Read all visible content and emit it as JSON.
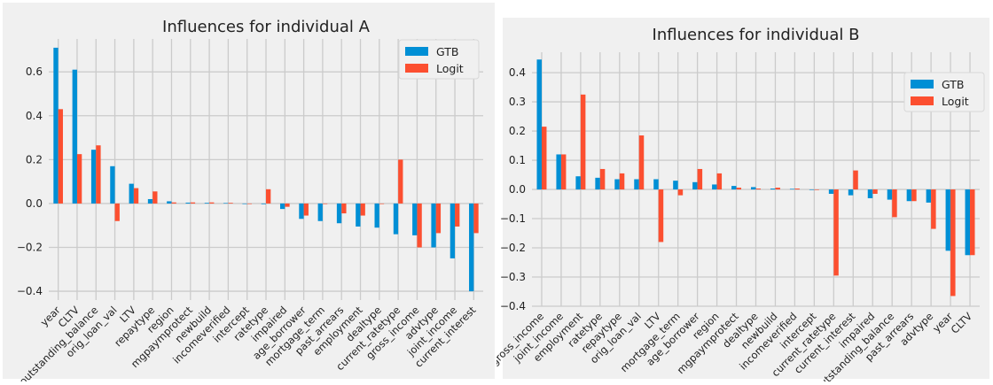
{
  "colors": {
    "gtb": "#008fd5",
    "logit": "#fc4f30",
    "background": "#f0f0f0",
    "grid": "#cbcbcb",
    "text": "#222222"
  },
  "chart_data": [
    {
      "type": "bar",
      "title": "Influences for individual A",
      "xlabel": "",
      "ylabel": "",
      "ylim": [
        -0.44,
        0.75
      ],
      "yticks": [
        "−0.4",
        "−0.2",
        "0.0",
        "0.2",
        "0.4",
        "0.6"
      ],
      "ytick_values": [
        -0.4,
        -0.2,
        0.0,
        0.2,
        0.4,
        0.6
      ],
      "grid": true,
      "legend_position": "top-right",
      "categories": [
        "year",
        "CLTV",
        "outstanding_balance",
        "orig_loan_val",
        "LTV",
        "repaytype",
        "region",
        "mgpaymprotect",
        "newbuild",
        "incomeverified",
        "intercept",
        "ratetype",
        "impaired",
        "age_borrower",
        "mortgage_term",
        "past_arrears",
        "employment",
        "dealtype",
        "current_ratetype",
        "gross_income",
        "advtype",
        "joint_income",
        "current_interest"
      ],
      "series": [
        {
          "name": "GTB",
          "values": [
            0.71,
            0.61,
            0.245,
            0.17,
            0.09,
            0.02,
            0.01,
            0.004,
            0.003,
            0.002,
            0.0,
            -0.003,
            -0.025,
            -0.07,
            -0.08,
            -0.09,
            -0.105,
            -0.11,
            -0.14,
            -0.145,
            -0.2,
            -0.25,
            -0.4
          ]
        },
        {
          "name": "Logit",
          "values": [
            0.43,
            0.225,
            0.265,
            -0.08,
            0.07,
            0.055,
            0.005,
            0.005,
            0.005,
            0.003,
            0.0,
            0.065,
            -0.015,
            -0.055,
            0.0,
            -0.045,
            -0.055,
            0.0,
            0.2,
            -0.2,
            -0.135,
            -0.105,
            -0.135
          ]
        }
      ]
    },
    {
      "type": "bar",
      "title": "Influences for individual B",
      "xlabel": "",
      "ylabel": "",
      "ylim": [
        -0.4,
        0.47
      ],
      "yticks": [
        "−0.4",
        "−0.3",
        "−0.2",
        "−0.1",
        "0.0",
        "0.1",
        "0.2",
        "0.3",
        "0.4"
      ],
      "ytick_values": [
        -0.4,
        -0.3,
        -0.2,
        -0.1,
        0.0,
        0.1,
        0.2,
        0.3,
        0.4
      ],
      "grid": true,
      "legend_position": "top-right",
      "categories": [
        "gross_income",
        "joint_income",
        "employment",
        "ratetype",
        "repaytype",
        "orig_loan_val",
        "LTV",
        "mortgage_term",
        "age_borrower",
        "region",
        "mgpaymprotect",
        "dealtype",
        "newbuild",
        "incomeverified",
        "intercept",
        "current_ratetype",
        "current_interest",
        "impaired",
        "outstanding_balance",
        "past_arrears",
        "advtype",
        "year",
        "CLTV"
      ],
      "series": [
        {
          "name": "GTB",
          "values": [
            0.445,
            0.12,
            0.045,
            0.04,
            0.035,
            0.035,
            0.035,
            0.03,
            0.025,
            0.017,
            0.012,
            0.008,
            0.003,
            0.002,
            0.0,
            -0.015,
            -0.02,
            -0.03,
            -0.035,
            -0.04,
            -0.045,
            -0.21,
            -0.225
          ]
        },
        {
          "name": "Logit",
          "values": [
            0.215,
            0.12,
            0.325,
            0.07,
            0.055,
            0.185,
            -0.18,
            -0.02,
            0.07,
            0.055,
            0.006,
            0.003,
            0.006,
            0.003,
            0.0,
            -0.295,
            0.065,
            -0.015,
            -0.095,
            -0.04,
            -0.135,
            -0.365,
            -0.225
          ]
        }
      ]
    }
  ]
}
